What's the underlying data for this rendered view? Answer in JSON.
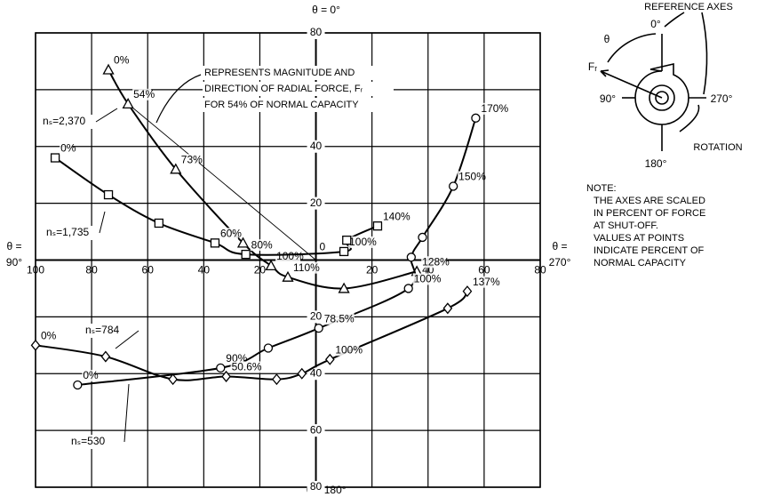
{
  "chart_data": {
    "type": "line",
    "axis_labels": {
      "top": "θ = 0°",
      "bottom": "θ = 180°",
      "left": [
        "θ =",
        "90°"
      ],
      "right": [
        "θ =",
        "270°"
      ]
    },
    "annotation": [
      "REPRESENTS MAGNITUDE AND",
      "DIRECTION OF RADIAL FORCE, Fᵣ",
      "FOR 54% OF NORMAL CAPACITY"
    ],
    "xlim": [
      -100,
      80
    ],
    "xticks": [
      {
        "value": -100,
        "label": "100"
      },
      {
        "value": -80,
        "label": "80"
      },
      {
        "value": -60,
        "label": "60"
      },
      {
        "value": -40,
        "label": "40"
      },
      {
        "value": -20,
        "label": "20"
      },
      0,
      20,
      40,
      60,
      80
    ],
    "ylim": [
      -80,
      80
    ],
    "yticks": [
      {
        "value": -80,
        "label": "80"
      },
      {
        "value": -60,
        "label": "60"
      },
      {
        "value": -40,
        "label": "40"
      },
      {
        "value": -20,
        "label": "20"
      },
      20,
      40,
      60,
      80
    ],
    "grid": true,
    "series": [
      {
        "name": "nₛ=2,370",
        "marker": "triangle",
        "color": "#000000",
        "x": [
          -74,
          -67,
          -50,
          -26,
          -16,
          -10,
          10,
          36
        ],
        "values": [
          67,
          55,
          32,
          6,
          -2,
          -6,
          -10,
          -4
        ],
        "labels": [
          "0%",
          "54%",
          "73%",
          null,
          "100%",
          "110%",
          null,
          "128%"
        ]
      },
      {
        "name": "nₛ=1,735",
        "marker": "square",
        "color": "#000000",
        "x": [
          -93,
          -74,
          -56,
          -36,
          -25,
          10,
          11,
          22
        ],
        "values": [
          36,
          23,
          13,
          6,
          2,
          3,
          7,
          12
        ],
        "labels": [
          "0%",
          null,
          null,
          "60%",
          "80%",
          "100%",
          null,
          "140%"
        ]
      },
      {
        "name": "nₛ=530",
        "marker": "circle",
        "color": "#000000",
        "x": [
          -85,
          -34,
          -17,
          1,
          33,
          34,
          38,
          49,
          57
        ],
        "values": [
          -44,
          -38,
          -31,
          -24,
          -10,
          1,
          8,
          26,
          50
        ],
        "labels": [
          "0%",
          "90%",
          null,
          "78.5%",
          "100%",
          null,
          null,
          "150%",
          "170%"
        ]
      },
      {
        "name": "nₛ=784",
        "marker": "diamond",
        "color": "#000000",
        "x": [
          -100,
          -75,
          -51,
          -32,
          -14,
          -5,
          5,
          47,
          54
        ],
        "values": [
          -30,
          -34,
          -42,
          -41,
          -42,
          -40,
          -35,
          -17,
          -11
        ],
        "labels": [
          "0%",
          null,
          null,
          "50.6%",
          null,
          null,
          "100%",
          null,
          "137%"
        ]
      }
    ]
  },
  "reference_diagram": {
    "title": "REFERENCE AXES",
    "theta": "θ",
    "top": "0°",
    "force": "Fᵣ",
    "left": "90°",
    "right": "270°",
    "rotation": "ROTATION",
    "bottom": "180°"
  },
  "note": [
    "NOTE:",
    "THE AXES ARE SCALED",
    "IN PERCENT OF FORCE",
    "AT SHUT-OFF.",
    "VALUES AT POINTS",
    "INDICATE PERCENT OF",
    "NORMAL CAPACITY"
  ]
}
